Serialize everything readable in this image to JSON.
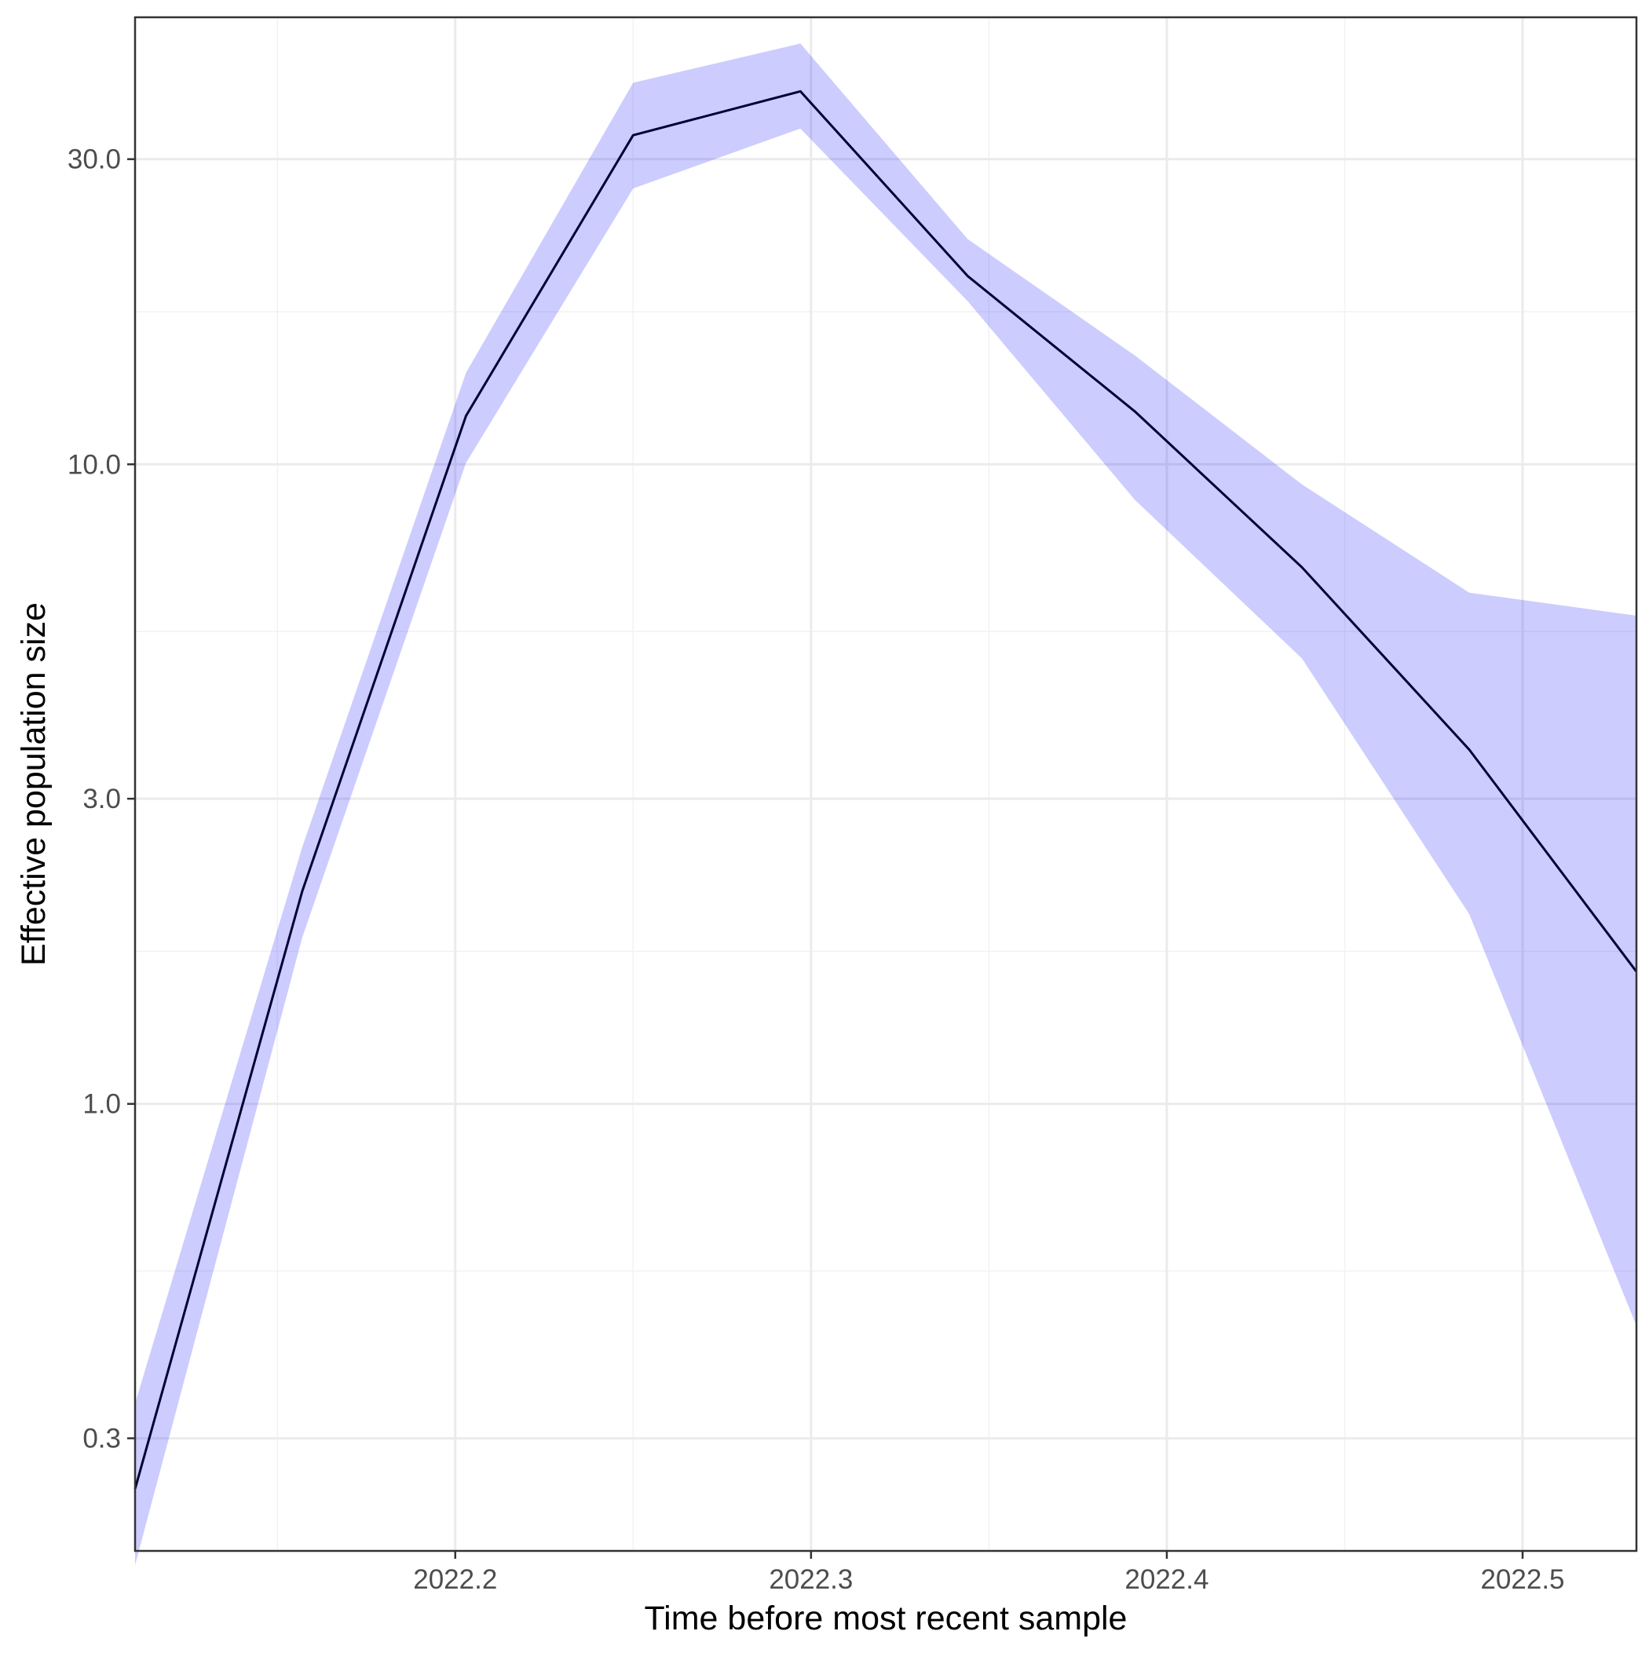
{
  "chart_data": {
    "type": "line",
    "xlabel": "Time before most recent sample",
    "ylabel": "Effective population size",
    "y_scale": "log10",
    "xlim": [
      2022.11,
      2022.532
    ],
    "ylim": [
      0.2,
      50
    ],
    "x_ticks": [
      {
        "value": 2022.2,
        "label": "2022.2"
      },
      {
        "value": 2022.3,
        "label": "2022.3"
      },
      {
        "value": 2022.4,
        "label": "2022.4"
      },
      {
        "value": 2022.5,
        "label": "2022.5"
      }
    ],
    "y_ticks": [
      {
        "value": 0.3,
        "label": "0.3"
      },
      {
        "value": 1.0,
        "label": "1.0"
      },
      {
        "value": 3.0,
        "label": "3.0"
      },
      {
        "value": 10.0,
        "label": "10.0"
      },
      {
        "value": 30.0,
        "label": "30.0"
      }
    ],
    "x_minor_grid": [
      2022.15,
      2022.25,
      2022.35,
      2022.45
    ],
    "y_minor_grid": [
      0.548,
      1.732,
      5.477,
      17.32
    ],
    "grid": true,
    "colors": {
      "ribbon": "#0000ff",
      "ribbon_opacity": 0.2,
      "line": "#000033",
      "grid_major": "#ebebeb",
      "grid_minor": "#f2f2f2",
      "axis_text": "#4d4d4d",
      "axis_title": "#000000",
      "panel_border": "#333333"
    },
    "series": [
      {
        "x": [
          2022.11,
          2022.157,
          2022.203,
          2022.25,
          2022.297,
          2022.344,
          2022.391,
          2022.438,
          2022.485,
          2022.532
        ],
        "median": [
          0.25,
          2.15,
          11.9,
          32.7,
          38.3,
          19.7,
          12.1,
          6.9,
          3.58,
          1.61
        ],
        "lower": [
          0.19,
          1.82,
          10.05,
          27.0,
          33.5,
          18.0,
          8.8,
          4.97,
          1.98,
          0.45
        ],
        "upper": [
          0.34,
          2.52,
          13.9,
          39.5,
          45.5,
          22.5,
          14.8,
          9.3,
          6.3,
          5.8
        ]
      }
    ]
  }
}
